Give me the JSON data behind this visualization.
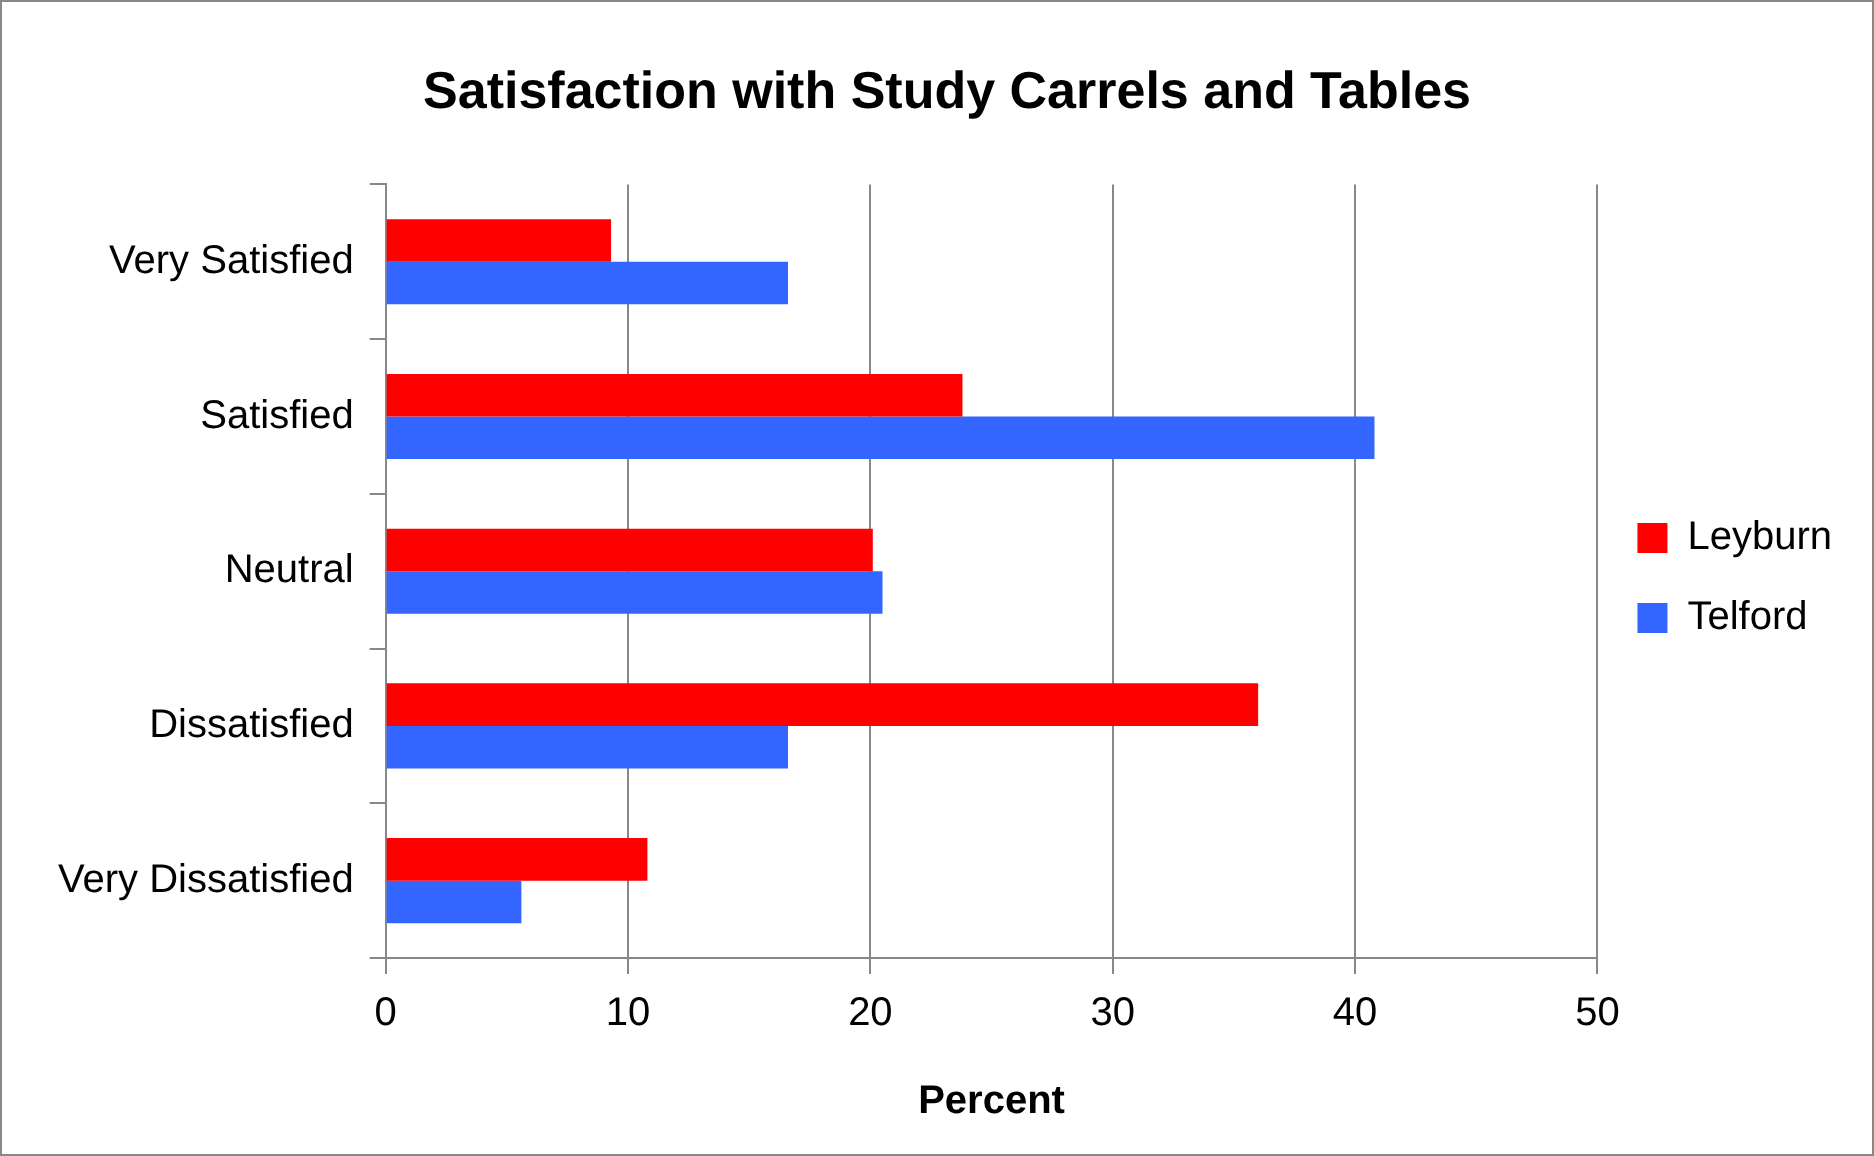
{
  "chart_data": {
    "type": "bar",
    "orientation": "horizontal",
    "title": "Satisfaction with Study Carrels and Tables",
    "xlabel": "Percent",
    "categories": [
      "Very Satisfied",
      "Satisfied",
      "Neutral",
      "Dissatisfied",
      "Very Dissatisfied"
    ],
    "series": [
      {
        "name": "Leyburn",
        "color": "#ff0000",
        "values": [
          9.3,
          23.8,
          20.1,
          36.0,
          10.8
        ]
      },
      {
        "name": "Telford",
        "color": "#3366ff",
        "values": [
          16.6,
          40.8,
          20.5,
          16.6,
          5.6
        ]
      }
    ],
    "xlim": [
      0,
      50
    ],
    "xticks": [
      0,
      10,
      20,
      30,
      40,
      50
    ],
    "grid": "x",
    "legend": "right"
  }
}
